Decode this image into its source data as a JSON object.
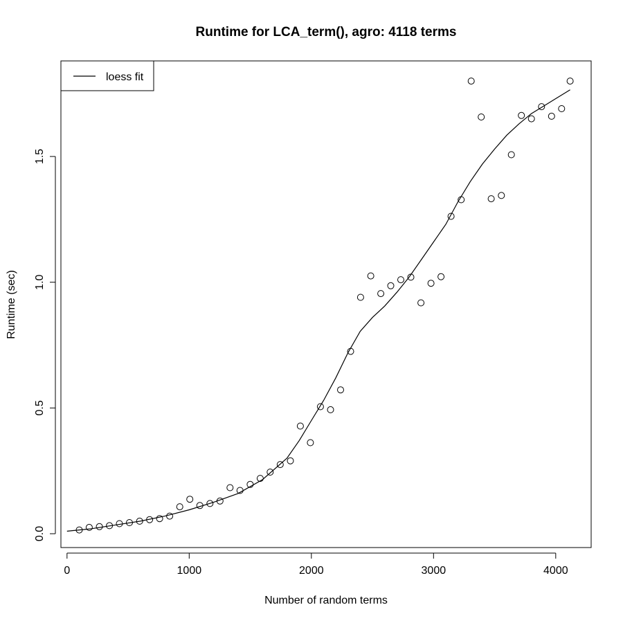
{
  "chart_data": {
    "type": "scatter",
    "title": "Runtime for LCA_term(), agro: 4118 terms",
    "xlabel": "Number of random terms",
    "ylabel": "Runtime (sec)",
    "xlim": [
      -50,
      4290
    ],
    "ylim": [
      -0.055,
      1.88
    ],
    "xticks": [
      0,
      1000,
      2000,
      3000,
      4000
    ],
    "yticks": [
      0.0,
      0.5,
      1.0,
      1.5
    ],
    "xtick_labels": [
      "0",
      "1000",
      "2000",
      "3000",
      "4000"
    ],
    "ytick_labels": [
      "0.0",
      "0.5",
      "1.0",
      "1.5"
    ],
    "grid": false,
    "legend": {
      "position": "top-left",
      "entries": [
        "loess fit"
      ]
    },
    "series": [
      {
        "kind": "points",
        "x": [
          100,
          182,
          265,
          347,
          429,
          511,
          594,
          676,
          758,
          840,
          923,
          1005,
          1087,
          1170,
          1252,
          1334,
          1416,
          1499,
          1581,
          1663,
          1745,
          1828,
          1910,
          1992,
          2074,
          2157,
          2239,
          2321,
          2403,
          2486,
          2568,
          2650,
          2732,
          2814,
          2897,
          2979,
          3061,
          3143,
          3226,
          3308,
          3390,
          3472,
          3555,
          3637,
          3719,
          3801,
          3884,
          3966,
          4048,
          4118
        ],
        "y": [
          0.015,
          0.025,
          0.028,
          0.032,
          0.04,
          0.044,
          0.05,
          0.056,
          0.06,
          0.07,
          0.107,
          0.137,
          0.112,
          0.12,
          0.13,
          0.183,
          0.172,
          0.196,
          0.22,
          0.245,
          0.275,
          0.29,
          0.428,
          0.362,
          0.505,
          0.493,
          0.572,
          0.725,
          0.94,
          1.025,
          0.955,
          0.986,
          1.01,
          1.02,
          0.918,
          0.996,
          1.022,
          1.262,
          1.328,
          1.8,
          1.657,
          1.332,
          1.345,
          1.507,
          1.663,
          1.65,
          1.698,
          1.66,
          1.69,
          1.8
        ]
      },
      {
        "name": "loess fit",
        "kind": "line",
        "x": [
          0,
          200,
          400,
          600,
          800,
          1000,
          1200,
          1400,
          1600,
          1800,
          1900,
          2000,
          2100,
          2200,
          2300,
          2400,
          2500,
          2600,
          2700,
          2800,
          2900,
          3000,
          3100,
          3200,
          3300,
          3400,
          3500,
          3600,
          3700,
          3800,
          3900,
          4000,
          4118
        ],
        "y": [
          0.01,
          0.02,
          0.035,
          0.05,
          0.07,
          0.095,
          0.125,
          0.16,
          0.215,
          0.3,
          0.37,
          0.45,
          0.53,
          0.62,
          0.72,
          0.805,
          0.86,
          0.905,
          0.96,
          1.02,
          1.09,
          1.16,
          1.23,
          1.32,
          1.4,
          1.47,
          1.53,
          1.585,
          1.63,
          1.67,
          1.7,
          1.73,
          1.765
        ]
      }
    ]
  }
}
